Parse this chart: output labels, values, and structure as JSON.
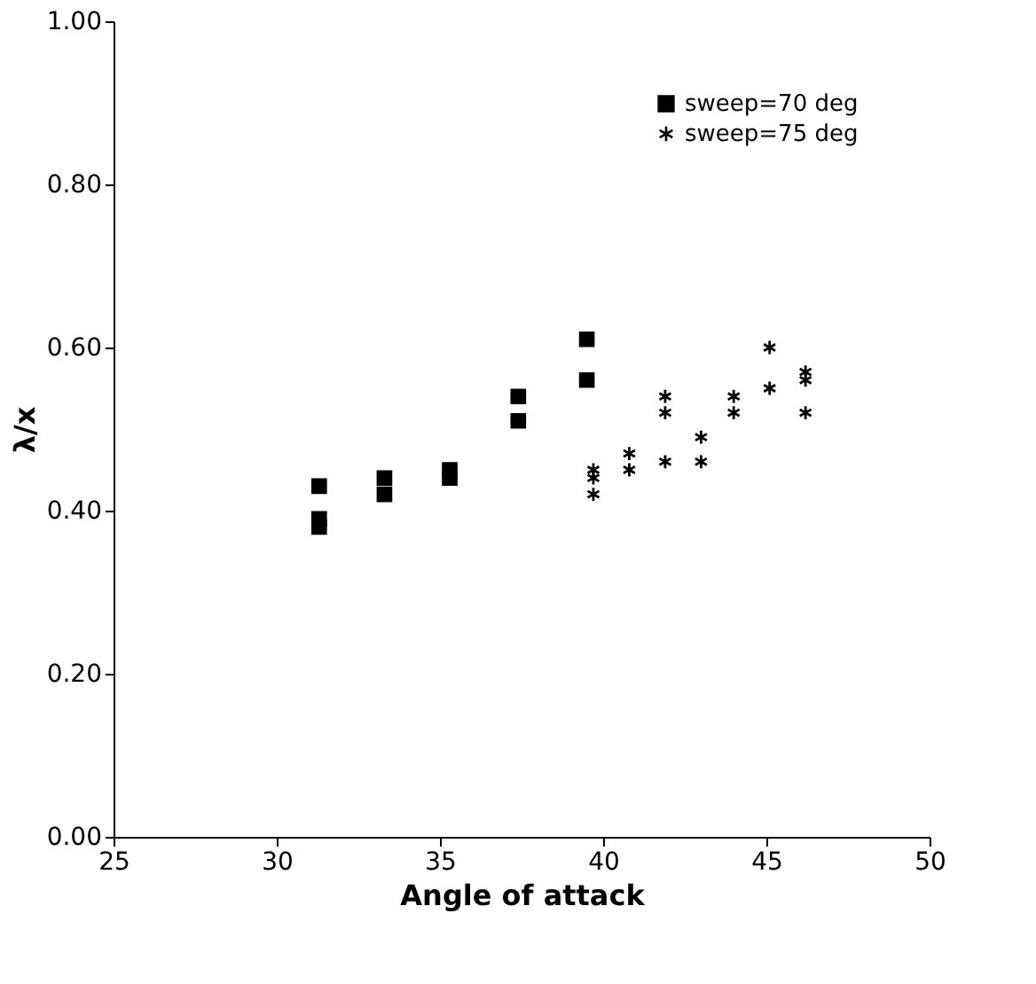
{
  "chart_data": {
    "type": "scatter",
    "xlabel": "Angle of attack",
    "ylabel": "λ/x",
    "xlim": [
      25,
      50
    ],
    "xticks": [
      25,
      30,
      35,
      40,
      45,
      50
    ],
    "ylim": [
      0,
      1
    ],
    "yticks": [
      {
        "value": 0,
        "label": "0.00"
      },
      {
        "value": 0.2,
        "label": "0.20"
      },
      {
        "value": 0.4,
        "label": "0.40"
      },
      {
        "value": 0.6,
        "label": "0.60"
      },
      {
        "value": 0.8,
        "label": "0.80"
      },
      {
        "value": 1,
        "label": "1.00"
      }
    ],
    "grid": false,
    "legend": "top right",
    "series": [
      {
        "name": "sweep=70 deg",
        "color": "#000000",
        "marker": "square",
        "x": [
          31.3,
          31.3,
          31.3,
          33.3,
          33.3,
          35.3,
          35.3,
          37.4,
          37.4,
          39.5,
          39.5
        ],
        "values": [
          0.43,
          0.39,
          0.38,
          0.44,
          0.42,
          0.45,
          0.44,
          0.54,
          0.51,
          0.61,
          0.56
        ]
      },
      {
        "name": "sweep=75 deg",
        "color": "#000000",
        "marker": "cross",
        "x": [
          39.7,
          39.7,
          39.7,
          40.8,
          40.8,
          41.9,
          41.9,
          41.9,
          43.0,
          43.0,
          44.0,
          44.0,
          45.1,
          45.1,
          46.2,
          46.2,
          46.2
        ],
        "values": [
          0.45,
          0.44,
          0.42,
          0.47,
          0.45,
          0.54,
          0.52,
          0.46,
          0.49,
          0.46,
          0.54,
          0.52,
          0.6,
          0.55,
          0.57,
          0.56,
          0.52
        ]
      }
    ]
  }
}
